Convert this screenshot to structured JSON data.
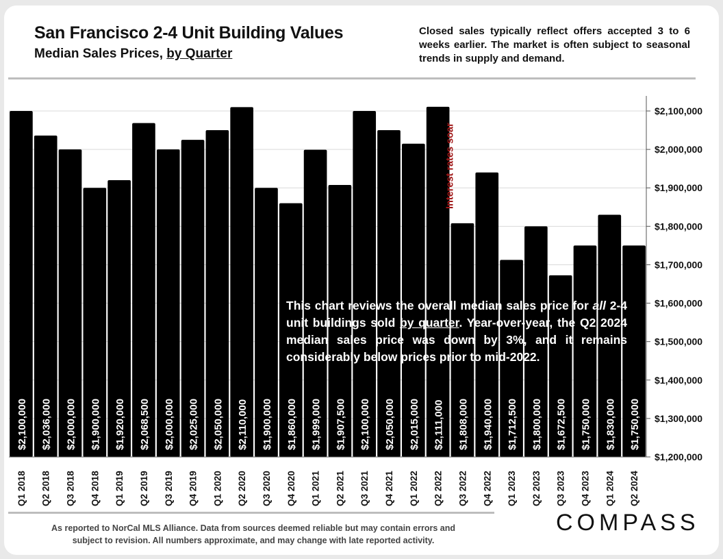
{
  "header": {
    "title": "San Francisco 2-4 Unit Building Values",
    "subtitle_prefix": "Median Sales Prices, ",
    "subtitle_underlined": "by Quarter",
    "note": "Closed sales typically reflect offers accepted 3 to 6 weeks earlier. The market is often subject to seasonal trends in supply and demand."
  },
  "callout": {
    "part1": "This chart reviews the overall median sales price for ",
    "italic": "all",
    "part2": " 2-4 unit buildings sold ",
    "underlined": "by quarter",
    "part3": ". Year-over-year, the Q2 2024 median sales price was down by 3%, and it remains considerably below prices prior to mid-2022."
  },
  "annotation": {
    "text": "Interest rates soar",
    "color": "#a01818"
  },
  "footer": {
    "line1": "As reported to NorCal MLS Alliance. Data from sources deemed reliable but may contain errors and",
    "line2": "subject to revision. All numbers approximate, and may change with late reported activity."
  },
  "logo": {
    "text": "COMPASS"
  },
  "chart_data": {
    "type": "bar",
    "title": "San Francisco 2-4 Unit Building Values",
    "xlabel": "",
    "ylabel": "",
    "ylim": [
      1200000,
      2100000
    ],
    "yticks": [
      1200000,
      1300000,
      1400000,
      1500000,
      1600000,
      1700000,
      1800000,
      1900000,
      2000000,
      2100000
    ],
    "ytick_labels": [
      "$1,200,000",
      "$1,300,000",
      "$1,400,000",
      "$1,500,000",
      "$1,600,000",
      "$1,700,000",
      "$1,800,000",
      "$1,900,000",
      "$2,000,000",
      "$2,100,000"
    ],
    "categories": [
      "Q1 2018",
      "Q2 2018",
      "Q3 2018",
      "Q4 2018",
      "Q1 2019",
      "Q2 2019",
      "Q3 2019",
      "Q4 2019",
      "Q1 2020",
      "Q2 2020",
      "Q3 2020",
      "Q4 2020",
      "Q1 2021",
      "Q2 2021",
      "Q3 2021",
      "Q4 2021",
      "Q1 2022",
      "Q2 2022",
      "Q3 2022",
      "Q4 2022",
      "Q1 2023",
      "Q2 2023",
      "Q3 2023",
      "Q4 2023",
      "Q1 2024",
      "Q2 2024"
    ],
    "values": [
      2100000,
      2036000,
      2000000,
      1900000,
      1920000,
      2068500,
      2000000,
      2025000,
      2050000,
      2110000,
      1900000,
      1860000,
      1999000,
      1907500,
      2100000,
      2050000,
      2015000,
      2111000,
      1808000,
      1940000,
      1712500,
      1800000,
      1672500,
      1750000,
      1830000,
      1750000
    ],
    "data_labels": [
      "$2,100,000",
      "$2,036,000",
      "$2,000,000",
      "$1,900,000",
      "$1,920,000",
      "$2,068,500",
      "$2,000,000",
      "$2,025,000",
      "$2,050,000",
      "$2,110,000",
      "$1,900,000",
      "$1,860,000",
      "$1,999,000",
      "$1,907,500",
      "$2,100,000",
      "$2,050,000",
      "$2,015,000",
      "$2,111,000",
      "$1,808,000",
      "$1,940,000",
      "$1,712,500",
      "$1,800,000",
      "$1,672,500",
      "$1,750,000",
      "$1,830,000",
      "$1,750,000"
    ],
    "bar_color": "#000000",
    "grid": true,
    "axis_side": "right"
  }
}
